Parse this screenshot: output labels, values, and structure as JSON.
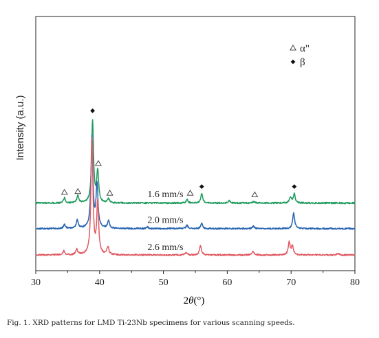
{
  "caption": "Fig. 1. XRD patterns for LMD Ti-23Nb specimens for various scanning speeds.",
  "chart_data": {
    "type": "line",
    "title": "",
    "xlabel": "2θ(°)",
    "ylabel": "Intensity (a.u.)",
    "xlim": [
      30,
      80
    ],
    "xticks": [
      30,
      40,
      50,
      60,
      70,
      80
    ],
    "y_ticks_shown": false,
    "grid": false,
    "legend_placement": "top-right",
    "legend": [
      {
        "symbol": "open-triangle",
        "label": "α\""
      },
      {
        "symbol": "filled-diamond",
        "label": "β"
      }
    ],
    "series": [
      {
        "name": "1.6 mm/s",
        "color": "#1f9b5e",
        "baseline": 0.72,
        "peaks": [
          {
            "x": 34.5,
            "h": 0.06
          },
          {
            "x": 36.6,
            "h": 0.09
          },
          {
            "x": 38.9,
            "h": 1.0
          },
          {
            "x": 39.7,
            "h": 0.38
          },
          {
            "x": 41.4,
            "h": 0.05
          },
          {
            "x": 53.7,
            "h": 0.04
          },
          {
            "x": 56.0,
            "h": 0.12
          },
          {
            "x": 60.3,
            "h": 0.03
          },
          {
            "x": 64.2,
            "h": 0.02
          },
          {
            "x": 69.9,
            "h": 0.07
          },
          {
            "x": 70.5,
            "h": 0.11
          }
        ]
      },
      {
        "name": "2.0 mm/s",
        "color": "#2563b0",
        "baseline": 0.41,
        "peaks": [
          {
            "x": 34.5,
            "h": 0.05
          },
          {
            "x": 36.5,
            "h": 0.1
          },
          {
            "x": 38.8,
            "h": 1.12
          },
          {
            "x": 39.6,
            "h": 0.52
          },
          {
            "x": 41.4,
            "h": 0.09
          },
          {
            "x": 47.5,
            "h": 0.02
          },
          {
            "x": 53.7,
            "h": 0.04
          },
          {
            "x": 56.0,
            "h": 0.06
          },
          {
            "x": 64.1,
            "h": 0.03
          },
          {
            "x": 70.4,
            "h": 0.19
          }
        ]
      },
      {
        "name": "2.6 mm/s",
        "color": "#e05a62",
        "baseline": 0.09,
        "peaks": [
          {
            "x": 34.4,
            "h": 0.05
          },
          {
            "x": 36.4,
            "h": 0.07
          },
          {
            "x": 38.8,
            "h": 1.4
          },
          {
            "x": 39.7,
            "h": 0.62
          },
          {
            "x": 41.3,
            "h": 0.09
          },
          {
            "x": 53.6,
            "h": 0.03
          },
          {
            "x": 55.8,
            "h": 0.12
          },
          {
            "x": 64.0,
            "h": 0.04
          },
          {
            "x": 69.7,
            "h": 0.15
          },
          {
            "x": 70.2,
            "h": 0.11
          },
          {
            "x": 77.3,
            "h": 0.02
          }
        ]
      }
    ],
    "series_labels": [
      {
        "text": "1.6 mm/s",
        "x": 47.5,
        "y": 0.79
      },
      {
        "text": "2.0 mm/s",
        "x": 47.5,
        "y": 0.48
      },
      {
        "text": "2.6 mm/s",
        "x": 47.5,
        "y": 0.15
      }
    ],
    "phase_markers": [
      {
        "type": "beta",
        "x": 38.9,
        "y": 1.84
      },
      {
        "type": "alpha",
        "x": 39.8,
        "y": 1.2
      },
      {
        "type": "alpha",
        "x": 34.5,
        "y": 0.85
      },
      {
        "type": "alpha",
        "x": 36.6,
        "y": 0.86
      },
      {
        "type": "alpha",
        "x": 41.6,
        "y": 0.84
      },
      {
        "type": "alpha",
        "x": 54.2,
        "y": 0.84
      },
      {
        "type": "beta",
        "x": 56.0,
        "y": 0.92
      },
      {
        "type": "alpha",
        "x": 64.3,
        "y": 0.82
      },
      {
        "type": "beta",
        "x": 70.5,
        "y": 0.92
      }
    ],
    "colors": {
      "alpha_marker": "#333333",
      "beta_marker": "#111111"
    }
  }
}
